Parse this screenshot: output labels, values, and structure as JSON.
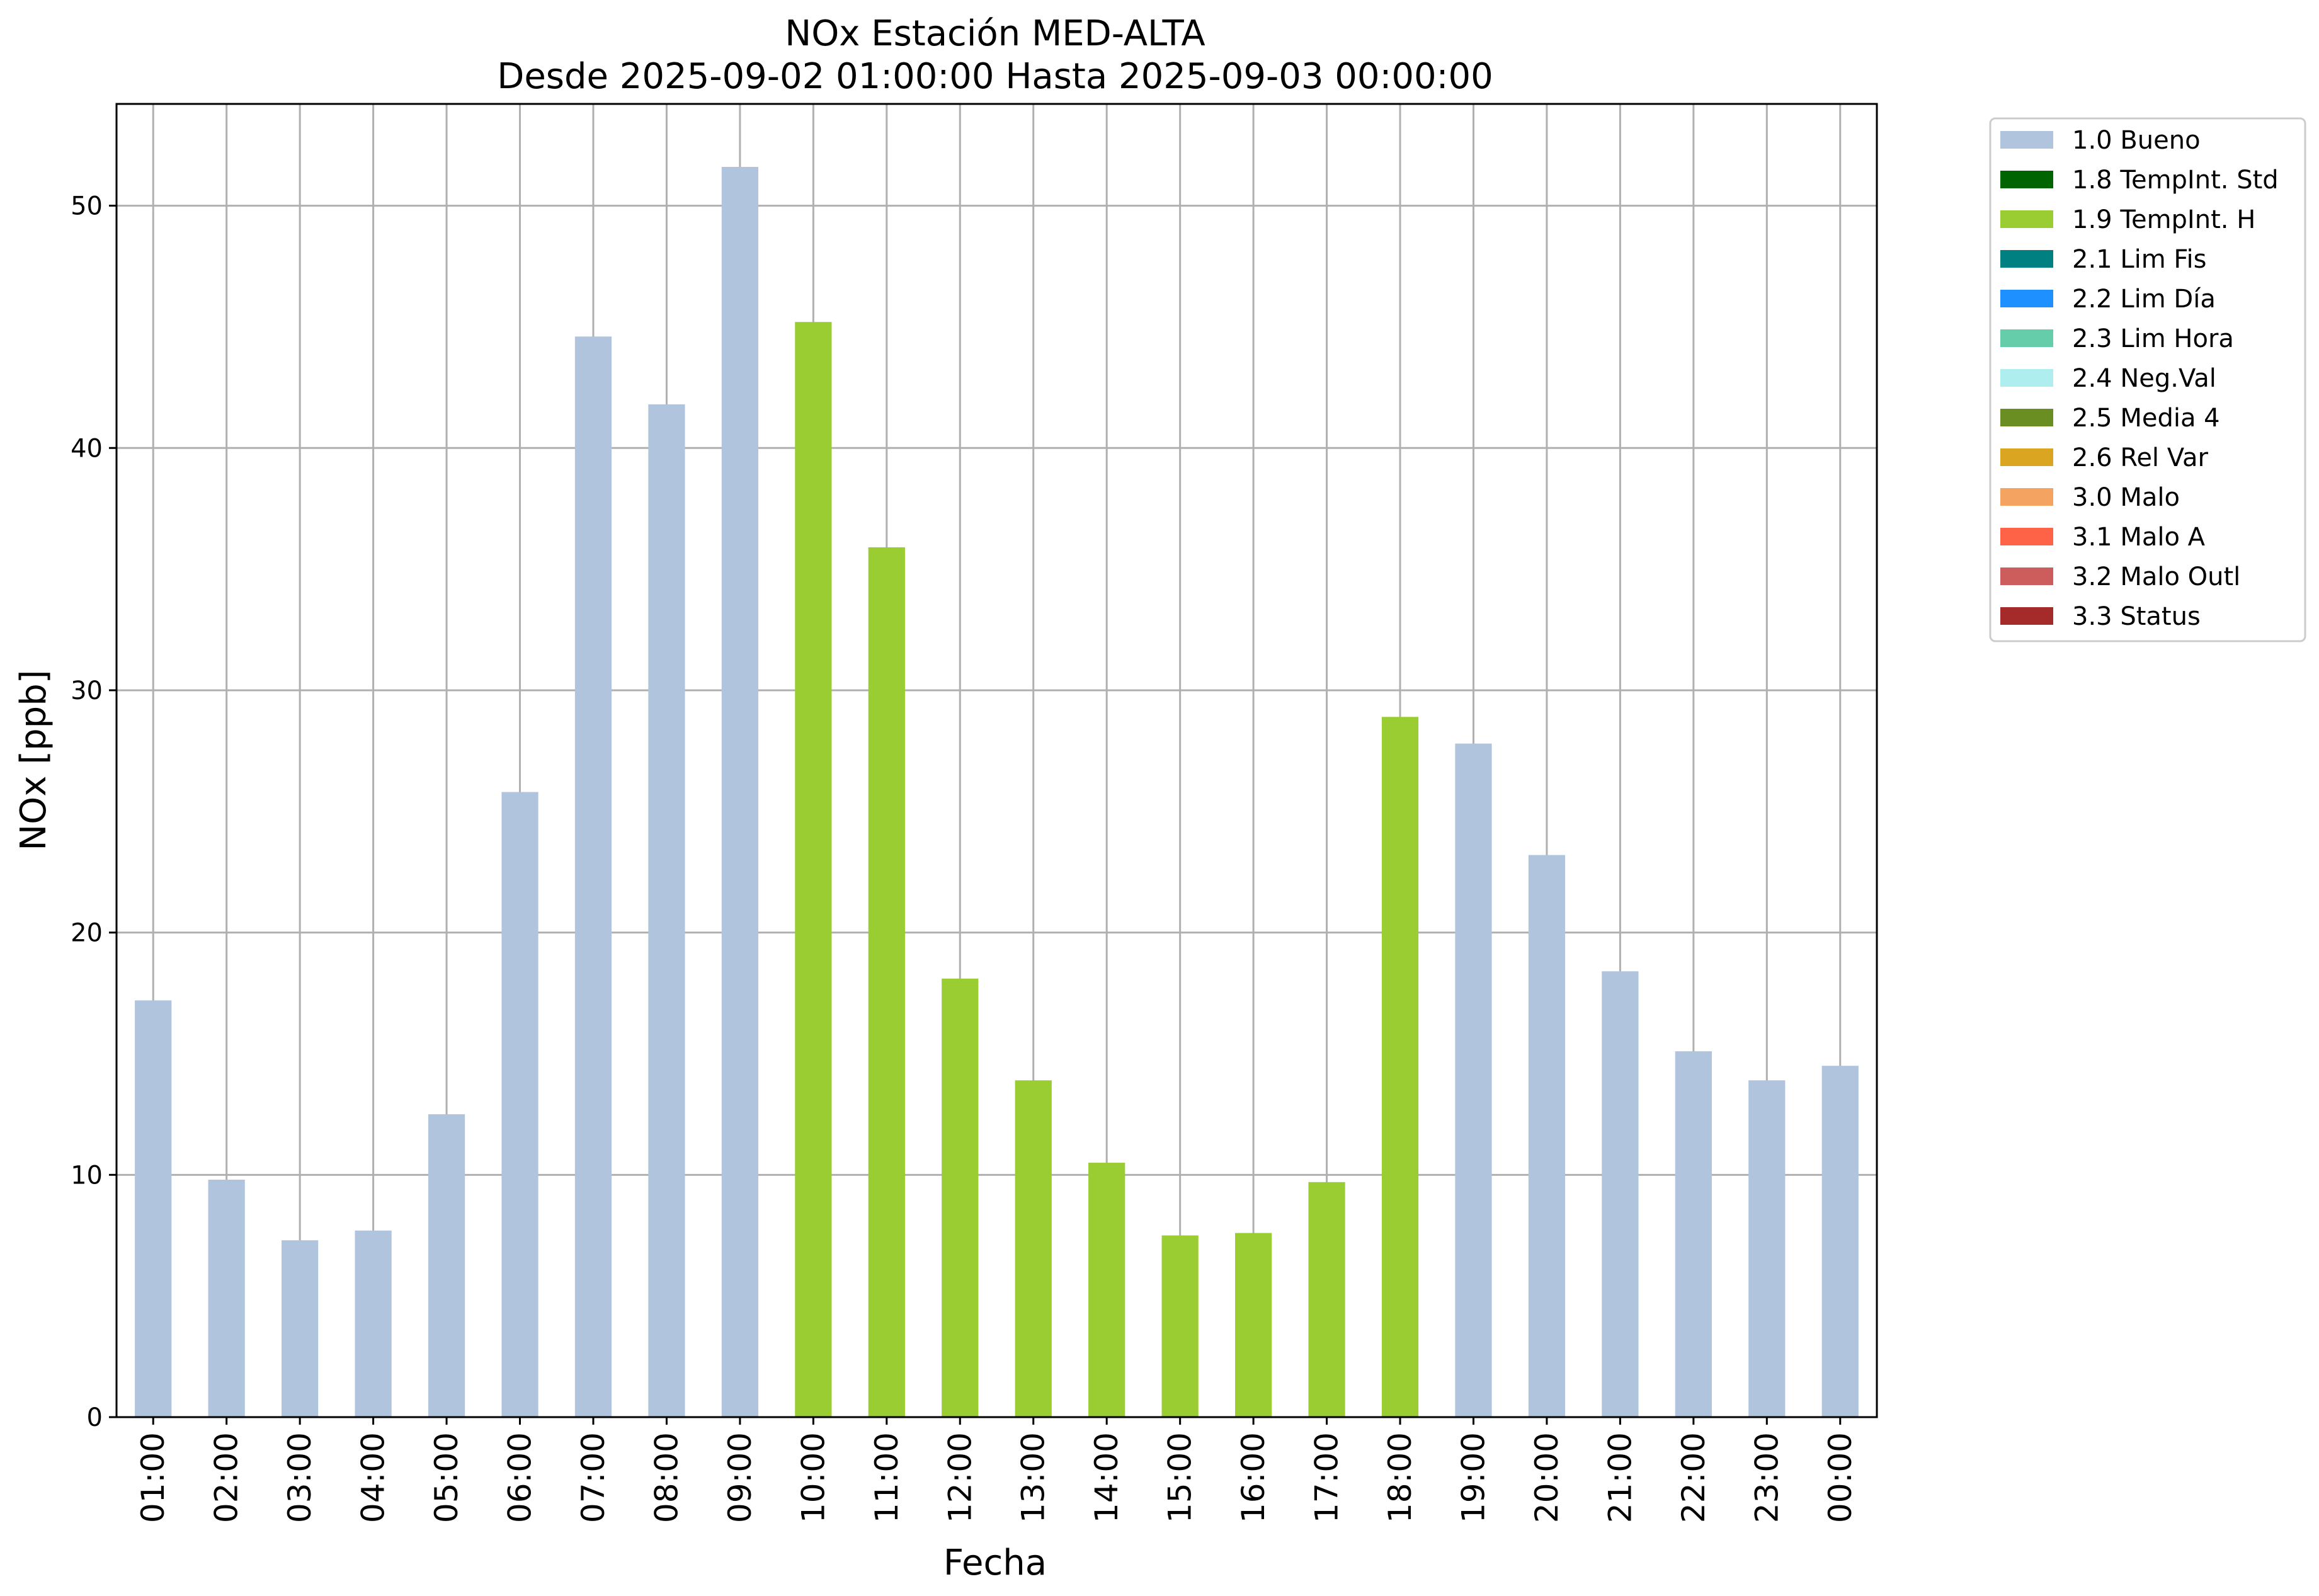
{
  "chart_data": {
    "type": "bar",
    "title": "NOx Estación MED-ALTA",
    "subtitle": "Desde 2025-09-02 01:00:00 Hasta 2025-09-03 00:00:00",
    "xlabel": "Fecha",
    "ylabel": "NOx [ppb]",
    "ylim": [
      0,
      54.2
    ],
    "yticks": [
      0,
      10,
      20,
      30,
      40,
      50
    ],
    "grid": true,
    "legend_position": "outside-top-right",
    "categories": [
      "01:00",
      "02:00",
      "03:00",
      "04:00",
      "05:00",
      "06:00",
      "07:00",
      "08:00",
      "09:00",
      "10:00",
      "11:00",
      "12:00",
      "13:00",
      "14:00",
      "15:00",
      "16:00",
      "17:00",
      "18:00",
      "19:00",
      "20:00",
      "21:00",
      "22:00",
      "23:00",
      "00:00"
    ],
    "values": [
      17.2,
      9.8,
      7.3,
      7.7,
      12.5,
      25.8,
      44.6,
      41.8,
      51.6,
      45.2,
      35.9,
      18.1,
      13.9,
      10.5,
      7.5,
      7.6,
      9.7,
      28.9,
      27.8,
      23.2,
      18.4,
      15.1,
      13.9,
      14.5
    ],
    "flags": [
      "1.0 Bueno",
      "1.0 Bueno",
      "1.0 Bueno",
      "1.0 Bueno",
      "1.0 Bueno",
      "1.0 Bueno",
      "1.0 Bueno",
      "1.0 Bueno",
      "1.0 Bueno",
      "1.9 TempInt. H",
      "1.9 TempInt. H",
      "1.9 TempInt. H",
      "1.9 TempInt. H",
      "1.9 TempInt. H",
      "1.9 TempInt. H",
      "1.9 TempInt. H",
      "1.9 TempInt. H",
      "1.9 TempInt. H",
      "1.0 Bueno",
      "1.0 Bueno",
      "1.0 Bueno",
      "1.0 Bueno",
      "1.0 Bueno",
      "1.0 Bueno"
    ],
    "legend": [
      {
        "name": "1.0 Bueno",
        "color": "#b0c4de"
      },
      {
        "name": "1.8 TempInt. Std",
        "color": "#006400"
      },
      {
        "name": "1.9 TempInt. H",
        "color": "#9acd32"
      },
      {
        "name": "2.1 Lim Fis",
        "color": "#008080"
      },
      {
        "name": "2.2 Lim Día",
        "color": "#1e90ff"
      },
      {
        "name": "2.3 Lim Hora",
        "color": "#66cdaa"
      },
      {
        "name": "2.4 Neg.Val",
        "color": "#afeeee"
      },
      {
        "name": "2.5 Media 4",
        "color": "#6b8e23"
      },
      {
        "name": "2.6 Rel Var",
        "color": "#daa520"
      },
      {
        "name": "3.0 Malo",
        "color": "#f4a460"
      },
      {
        "name": "3.1 Malo A",
        "color": "#ff6347"
      },
      {
        "name": "3.2 Malo Outl",
        "color": "#cd5c5c"
      },
      {
        "name": "3.3 Status",
        "color": "#a52a2a"
      }
    ]
  }
}
